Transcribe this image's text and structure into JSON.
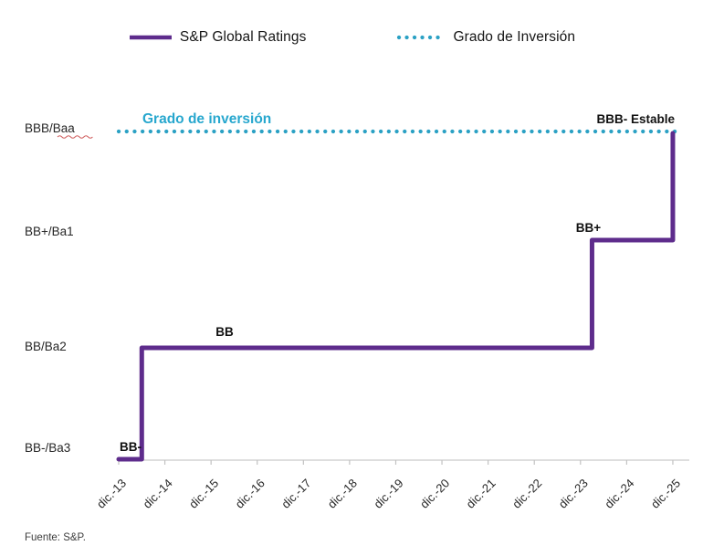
{
  "legend": {
    "items": [
      {
        "label": "S&P Global Ratings",
        "color": "#5E2C8C",
        "style": "solid"
      },
      {
        "label": "Grado de Inversión",
        "color": "#2BA1C4",
        "style": "dotted"
      }
    ]
  },
  "footer": {
    "source": "Fuente: S&P."
  },
  "chart_data": {
    "type": "line",
    "subtype": "step",
    "title": "",
    "xlabel": "",
    "ylabel": "",
    "x_unit": "years since dic.-13",
    "x_ticklabels": [
      "dic.-13",
      "dic.-14",
      "dic.-15",
      "dic.-16",
      "dic.-17",
      "dic.-18",
      "dic.-19",
      "dic.-20",
      "dic.-21",
      "dic.-22",
      "dic.-23",
      "dic.-24",
      "dic.-25"
    ],
    "y_ticklabels_top_to_bottom": [
      "BBB/Baa",
      "BB+/Ba1",
      "BB/Ba2",
      "BB-/Ba3"
    ],
    "rating_levels_bottom_to_top": [
      "BB-/Ba3",
      "BB/Ba2",
      "BB+/Ba1",
      "BBB/Baa"
    ],
    "grid": false,
    "legend_position": "top",
    "series": [
      {
        "name": "S&P Global Ratings",
        "color": "#5E2C8C",
        "style": "solid",
        "points": [
          [
            0,
            0
          ],
          [
            0.5,
            0
          ],
          [
            0.5,
            1
          ],
          [
            10.25,
            1
          ],
          [
            10.25,
            2
          ],
          [
            12,
            2
          ],
          [
            12,
            3
          ]
        ]
      },
      {
        "name": "Grado de Inversión",
        "color": "#2BA1C4",
        "style": "dotted",
        "level": 3,
        "x_span": [
          0,
          12.08
        ]
      }
    ],
    "annotations": [
      {
        "text": "BB-",
        "x": 0.02,
        "level": 0
      },
      {
        "text": "BB",
        "x": 2.1,
        "level": 1
      },
      {
        "text": "BB+",
        "x": 9.9,
        "level": 2
      },
      {
        "text": "BBB- Estable",
        "x": 10.35,
        "level": 3
      }
    ],
    "threshold_label": {
      "text": "Grado de inversión",
      "color": "#27A7CE"
    }
  }
}
